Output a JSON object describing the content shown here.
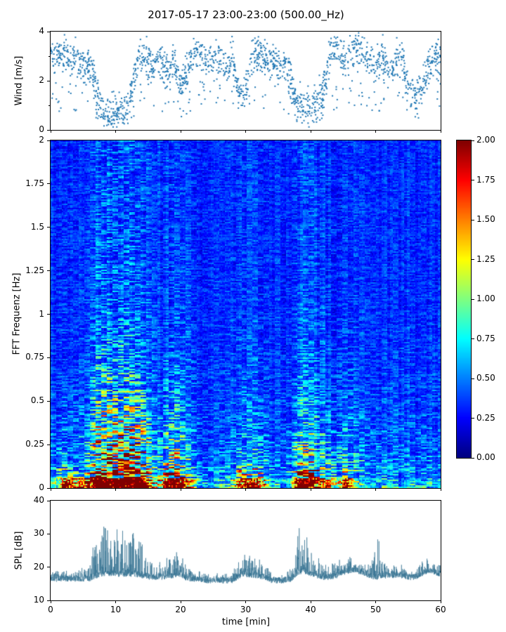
{
  "title": "2017-05-17 23:00-23:00 (500.00_Hz)",
  "figure": {
    "background": "#ffffff",
    "spine_color": "#000000",
    "accent_color": "#1f77b4"
  },
  "chart_data": [
    {
      "id": "wind",
      "type": "scatter",
      "ylabel": "Wind [m/s]",
      "xlim": [
        0,
        60
      ],
      "ylim": [
        0,
        4
      ],
      "yticks": [
        0,
        2,
        4
      ],
      "ytick_labels": [
        "0",
        "2",
        "4"
      ],
      "yticks_minor": [
        1,
        3
      ],
      "marker_color": "#1f77b4",
      "n_points": 1850,
      "spread": 0.45,
      "mean_wind_by_minute": [
        3.2,
        3.0,
        3.1,
        2.8,
        3.0,
        2.6,
        2.8,
        1.6,
        0.8,
        0.7,
        0.8,
        0.8,
        1.0,
        2.4,
        3.0,
        2.8,
        2.7,
        2.8,
        2.5,
        2.8,
        1.8,
        2.5,
        3.0,
        3.2,
        2.8,
        3.0,
        3.0,
        2.6,
        3.0,
        1.3,
        1.6,
        3.0,
        3.2,
        2.8,
        3.0,
        2.5,
        2.8,
        2.0,
        1.0,
        0.9,
        1.0,
        1.2,
        1.6,
        3.0,
        3.2,
        2.8,
        3.0,
        3.3,
        3.4,
        2.8,
        2.5,
        3.0,
        2.3,
        2.8,
        3.0,
        1.8,
        1.2,
        1.6,
        2.5,
        3.0,
        3.0
      ]
    },
    {
      "id": "spectrogram",
      "type": "heatmap",
      "ylabel": "FFT Frequenz [Hz]",
      "xlim": [
        0,
        60
      ],
      "ylim": [
        0,
        2
      ],
      "yticks": [
        0,
        0.25,
        0.5,
        0.75,
        1,
        1.25,
        1.5,
        1.75,
        2
      ],
      "ytick_labels": [
        "0",
        "0.25",
        "0.5",
        "0.75",
        "1",
        "1.25",
        "1.5",
        "1.75",
        "2"
      ],
      "colormap": "jet",
      "clim": [
        0,
        2
      ],
      "activity_by_minute": [
        0.15,
        0.2,
        0.25,
        0.2,
        0.2,
        0.25,
        0.4,
        0.9,
        1.0,
        1.0,
        1.0,
        1.0,
        1.0,
        0.95,
        0.8,
        0.5,
        0.3,
        0.3,
        0.5,
        0.6,
        0.5,
        0.35,
        0.25,
        0.15,
        0.15,
        0.15,
        0.15,
        0.15,
        0.2,
        0.3,
        0.35,
        0.3,
        0.3,
        0.25,
        0.15,
        0.15,
        0.15,
        0.2,
        0.5,
        0.6,
        0.55,
        0.45,
        0.35,
        0.3,
        0.25,
        0.3,
        0.3,
        0.25,
        0.2,
        0.15,
        0.15,
        0.15,
        0.15,
        0.15,
        0.15,
        0.15,
        0.15,
        0.15,
        0.15,
        0.15
      ],
      "low_freq_bursts_by_minute": [
        0.3,
        0.5,
        1.2,
        1.5,
        1.0,
        1.3,
        1.5,
        2.0,
        2.0,
        2.0,
        2.0,
        2.0,
        2.0,
        2.0,
        1.8,
        0.8,
        0.4,
        0.6,
        1.5,
        1.8,
        1.5,
        0.8,
        0.3,
        0.1,
        0.1,
        0.1,
        0.1,
        0.1,
        0.3,
        1.2,
        1.5,
        1.3,
        1.5,
        0.8,
        0.2,
        0.1,
        0.1,
        0.3,
        1.8,
        2.0,
        1.8,
        1.2,
        1.0,
        0.6,
        0.4,
        1.0,
        1.2,
        0.5,
        0.2,
        0.1,
        0.1,
        0.1,
        0.2,
        0.1,
        0.1,
        0.1,
        0.1,
        0.1,
        0.1,
        0.1
      ],
      "colorbar": {
        "tick_labels_top_to_bottom": [
          "2.00",
          "1.75",
          "1.50",
          "1.25",
          "1.00",
          "0.75",
          "0.50",
          "0.25",
          "0.00"
        ]
      }
    },
    {
      "id": "spl",
      "type": "line",
      "ylabel": "SPL [dB]",
      "xlabel": "time [min]",
      "xlim": [
        0,
        60
      ],
      "ylim": [
        10,
        40
      ],
      "yticks": [
        10,
        20,
        30,
        40
      ],
      "ytick_labels": [
        "10",
        "20",
        "30",
        "40"
      ],
      "xticks": [
        0,
        10,
        20,
        30,
        40,
        50,
        60
      ],
      "xtick_labels": [
        "0",
        "10",
        "20",
        "30",
        "40",
        "50",
        "60"
      ],
      "line_color": "#31708f",
      "baseline_by_minute": [
        16.5,
        16.5,
        16.5,
        16.5,
        16.5,
        16.5,
        16.5,
        17.5,
        18,
        18,
        18,
        18,
        18,
        18,
        17.5,
        17,
        17,
        17,
        17.5,
        17.5,
        18,
        16.5,
        16.5,
        16.5,
        16,
        16,
        16,
        16,
        16,
        17.5,
        18,
        17.5,
        17.5,
        17,
        16,
        16,
        16,
        16.5,
        18.5,
        19,
        18,
        17.5,
        17,
        17,
        17.5,
        18.5,
        19,
        19,
        18.5,
        17.5,
        17,
        17.5,
        17.5,
        17.5,
        17.5,
        17,
        17,
        18,
        19,
        18.5,
        18
      ],
      "spike_amp_by_minute": [
        2,
        2,
        2,
        2,
        3,
        3,
        4,
        12,
        15,
        15,
        15,
        15,
        14,
        13,
        10,
        5,
        4,
        4,
        6,
        6,
        8,
        3,
        2,
        2,
        2,
        2,
        2,
        2,
        2,
        6,
        7,
        6,
        6,
        4,
        2,
        2,
        2,
        3,
        13,
        15,
        8,
        5,
        4,
        4,
        4,
        5,
        5,
        4,
        3,
        3,
        22,
        4,
        3,
        3,
        3,
        2,
        2,
        4,
        4,
        3,
        3
      ]
    }
  ]
}
